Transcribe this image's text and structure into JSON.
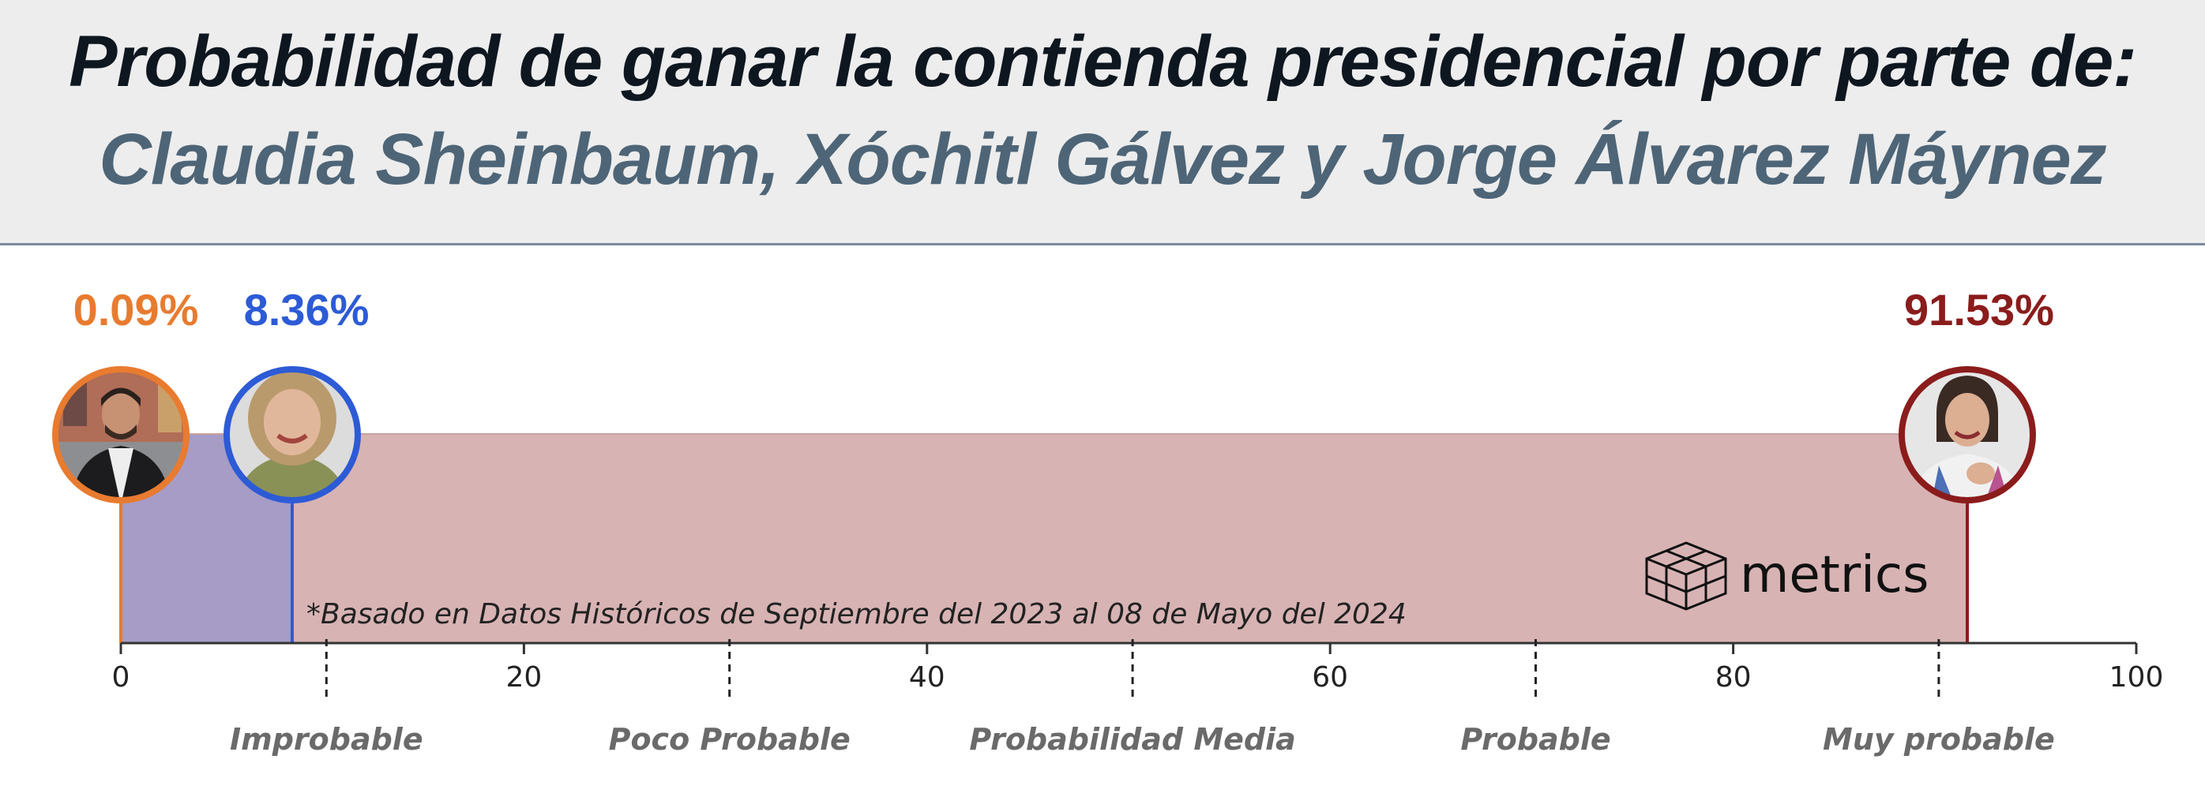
{
  "header": {
    "title": "Probabilidad de ganar la contienda presidencial por parte de:",
    "subtitle": "Claudia Sheinbaum, Xóchitl Gálvez y Jorge Álvarez Máynez"
  },
  "chart_data": {
    "type": "bar",
    "orientation": "horizontal-stacked",
    "xlim": [
      0,
      100
    ],
    "xticks": [
      "0",
      "20",
      "40",
      "60",
      "80",
      "100"
    ],
    "categories": [
      "Improbable",
      "Poco Probable",
      "Probabilidad Media",
      "Probable",
      "Muy probable"
    ],
    "category_dividers": [
      10.2,
      30.2,
      50.2,
      70.2,
      90.2
    ],
    "series": [
      {
        "name": "Jorge Álvarez Máynez",
        "value": 0.09,
        "label": "0.09%",
        "color": "#e87b2f",
        "marker_x": 0,
        "fill_to": 8.45
      },
      {
        "name": "Xóchitl Gálvez",
        "value": 8.36,
        "label": "8.36%",
        "color": "#2d5bd6",
        "marker_x": 8.45,
        "fill_to": 91.53
      },
      {
        "name": "Claudia Sheinbaum",
        "value": 91.53,
        "label": "91.53%",
        "color": "#8b1c1c",
        "marker_x": 91.53
      }
    ],
    "fill_colors": {
      "segment_1": "#a69cc6",
      "segment_2": "#d8b3b3"
    },
    "note": "*Basado en Datos Históricos de Septiembre del 2023 al 08 de Mayo del 2024",
    "brand": "metrics"
  }
}
